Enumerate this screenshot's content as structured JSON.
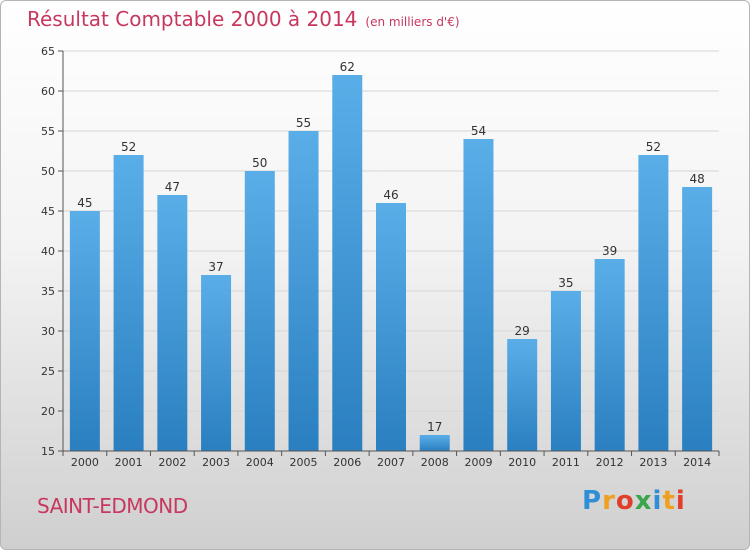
{
  "header": {
    "title": "Résultat Comptable 2000 à 2014",
    "subtitle": "(en milliers d'€)"
  },
  "footer": {
    "commune": "SAINT-EDMOND",
    "logo_letters": [
      "P",
      "r",
      "o",
      "x",
      "i",
      "t",
      "i"
    ]
  },
  "colors": {
    "title": "#c8385e",
    "bar_top": "#5aaee8",
    "bar_bottom": "#2a7fc0"
  },
  "chart_data": {
    "type": "bar",
    "title": "Résultat Comptable 2000 à 2014",
    "subtitle": "(en milliers d'€)",
    "xlabel": "",
    "ylabel": "",
    "categories": [
      "2000",
      "2001",
      "2002",
      "2003",
      "2004",
      "2005",
      "2006",
      "2007",
      "2008",
      "2009",
      "2010",
      "2011",
      "2012",
      "2013",
      "2014"
    ],
    "values": [
      45,
      52,
      47,
      37,
      50,
      55,
      62,
      46,
      17,
      54,
      29,
      35,
      39,
      52,
      48
    ],
    "ylim": [
      15,
      65
    ],
    "yticks": [
      15,
      20,
      25,
      30,
      35,
      40,
      45,
      50,
      55,
      60,
      65
    ],
    "grid": true,
    "data_labels": true
  }
}
